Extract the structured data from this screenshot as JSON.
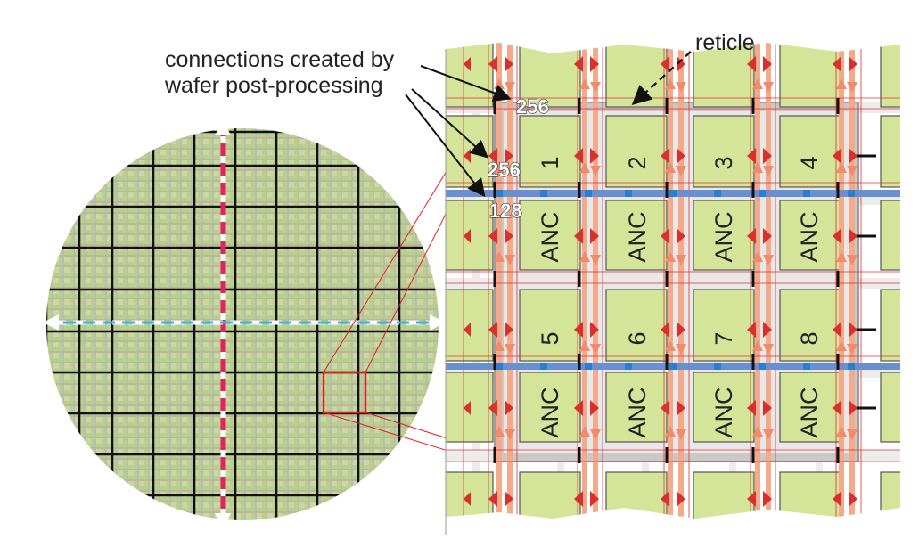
{
  "labels": {
    "reticle": "reticle",
    "connections_line1": "connections created by",
    "connections_line2": "wafer post-processing",
    "count_top": "256",
    "count_mid": "256",
    "count_low": "128",
    "anc": "ANC"
  },
  "chips": [
    "1",
    "2",
    "3",
    "4",
    "5",
    "6",
    "7",
    "8"
  ],
  "colors": {
    "chip_fill": "#d4e59a",
    "bus_orange": "#f4a98a",
    "bus_blue": "#6a8fd0",
    "marker_red": "#d8302e",
    "reticle_gray": "#bdbdbd",
    "wafer_dash_red": "#e0245e",
    "wafer_dash_cyan": "#2fb8d8"
  }
}
